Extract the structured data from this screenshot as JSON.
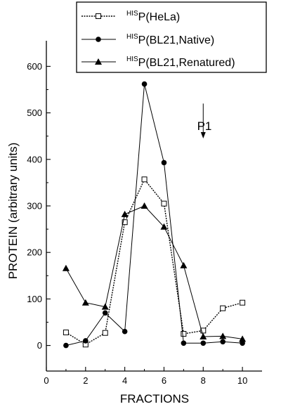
{
  "chart_data": {
    "type": "line",
    "xlabel": "FRACTIONS",
    "ylabel": "PROTEIN (arbitrary units)",
    "xlim": [
      0,
      11
    ],
    "ylim": [
      -55,
      655
    ],
    "x_ticks": [
      0,
      2,
      4,
      6,
      8,
      10
    ],
    "y_ticks": [
      0,
      100,
      200,
      300,
      400,
      500,
      600
    ],
    "grid": false,
    "legend_position": "top-right",
    "series": [
      {
        "name_sup": "HIS",
        "name_main": "P(HeLa)",
        "marker": "open-square",
        "line_style": "dotted",
        "x": [
          1,
          2,
          3,
          4,
          5,
          6,
          7,
          8,
          9,
          10
        ],
        "y": [
          28,
          2,
          27,
          265,
          357,
          305,
          25,
          32,
          80,
          92
        ]
      },
      {
        "name_sup": "HIS",
        "name_main": "P(BL21,Native)",
        "marker": "filled-circle",
        "line_style": "solid",
        "x": [
          1,
          2,
          3,
          4,
          5,
          6,
          7,
          8,
          9,
          10
        ],
        "y": [
          0,
          10,
          70,
          30,
          562,
          393,
          5,
          5,
          8,
          5
        ]
      },
      {
        "name_sup": "HIS",
        "name_main": "P(BL21,Renatured)",
        "marker": "filled-triangle",
        "line_style": "solid",
        "x": [
          1,
          2,
          3,
          4,
          5,
          6,
          7,
          8,
          9,
          10
        ],
        "y": [
          166,
          92,
          83,
          282,
          300,
          255,
          172,
          19,
          20,
          14
        ]
      }
    ],
    "annotations": [
      {
        "text": "P1",
        "arrow_x": 8,
        "arrow_y_top": 520,
        "arrow_y_bottom": 445
      }
    ]
  }
}
